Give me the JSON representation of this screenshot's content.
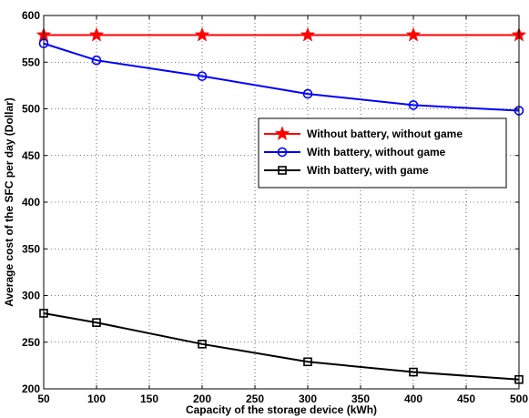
{
  "chart_data": {
    "type": "line",
    "title": "",
    "xlabel": "Capacity of the storage device (kWh)",
    "ylabel": "Average cost of the SFC per day (Dollar)",
    "xlim": [
      50,
      500
    ],
    "ylim": [
      200,
      600
    ],
    "x_ticks": [
      50,
      100,
      150,
      200,
      250,
      300,
      350,
      400,
      450,
      500
    ],
    "y_ticks": [
      200,
      250,
      300,
      350,
      400,
      450,
      500,
      550,
      600
    ],
    "grid": true,
    "legend_position": "center-right",
    "x": [
      50,
      100,
      200,
      300,
      400,
      500
    ],
    "series": [
      {
        "name": "Without battery, without game",
        "color": "#ff0000",
        "marker": "star",
        "values": [
          579,
          579,
          579,
          579,
          579,
          579
        ]
      },
      {
        "name": "With battery, without game",
        "color": "#0000ff",
        "marker": "circle",
        "values": [
          570,
          552,
          535,
          516,
          504,
          498
        ]
      },
      {
        "name": "With battery, with game",
        "color": "#000000",
        "marker": "square",
        "values": [
          281,
          271,
          248,
          229,
          218,
          210
        ]
      }
    ]
  }
}
